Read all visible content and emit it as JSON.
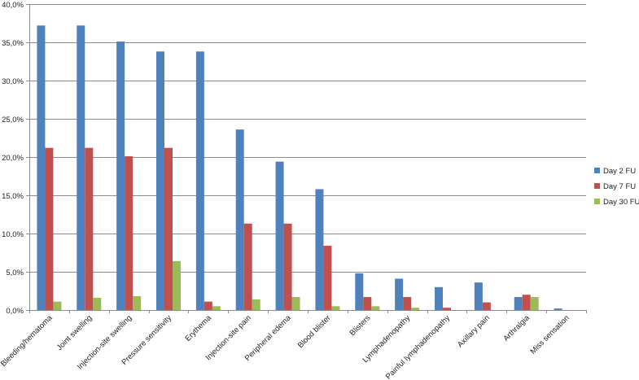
{
  "chart_data": {
    "type": "bar",
    "title": "",
    "xlabel": "",
    "ylabel": "",
    "ylim": [
      0,
      40
    ],
    "y_ticks": [
      "0,0%",
      "5,0%",
      "10,0%",
      "15,0%",
      "20,0%",
      "25,0%",
      "30,0%",
      "35,0%",
      "40,0%"
    ],
    "y_tick_values": [
      0,
      5,
      10,
      15,
      20,
      25,
      30,
      35,
      40
    ],
    "grid": true,
    "legend_position": "right",
    "categories": [
      "Bleeding/hematoma",
      "Joint swelling",
      "Injection-site swelling",
      "Pressure sensitivity",
      "Erythema",
      "Injection-site pain",
      "Peripheral edema",
      "Blood blister",
      "Blisters",
      "Lymphadenopathy",
      "Painful lymphadenopathy",
      "Axillary pain",
      "Arthralgia",
      "Miss sensation"
    ],
    "series": [
      {
        "name": "Day 2 FU",
        "color": "#4F81BD",
        "values": [
          37.2,
          37.2,
          35.1,
          33.8,
          33.8,
          23.6,
          19.4,
          15.8,
          4.8,
          4.1,
          3.0,
          3.6,
          1.7,
          0.2
        ]
      },
      {
        "name": "Day 7 FU",
        "color": "#C0504D",
        "values": [
          21.2,
          21.2,
          20.1,
          21.2,
          1.1,
          11.3,
          11.3,
          8.4,
          1.7,
          1.7,
          0.3,
          1.0,
          2.0,
          0.0
        ]
      },
      {
        "name": "Day 30 FU",
        "color": "#9BBB59",
        "values": [
          1.1,
          1.6,
          1.8,
          6.4,
          0.5,
          1.4,
          1.7,
          0.5,
          0.5,
          0.3,
          0.0,
          0.0,
          1.7,
          0.0
        ]
      }
    ]
  }
}
